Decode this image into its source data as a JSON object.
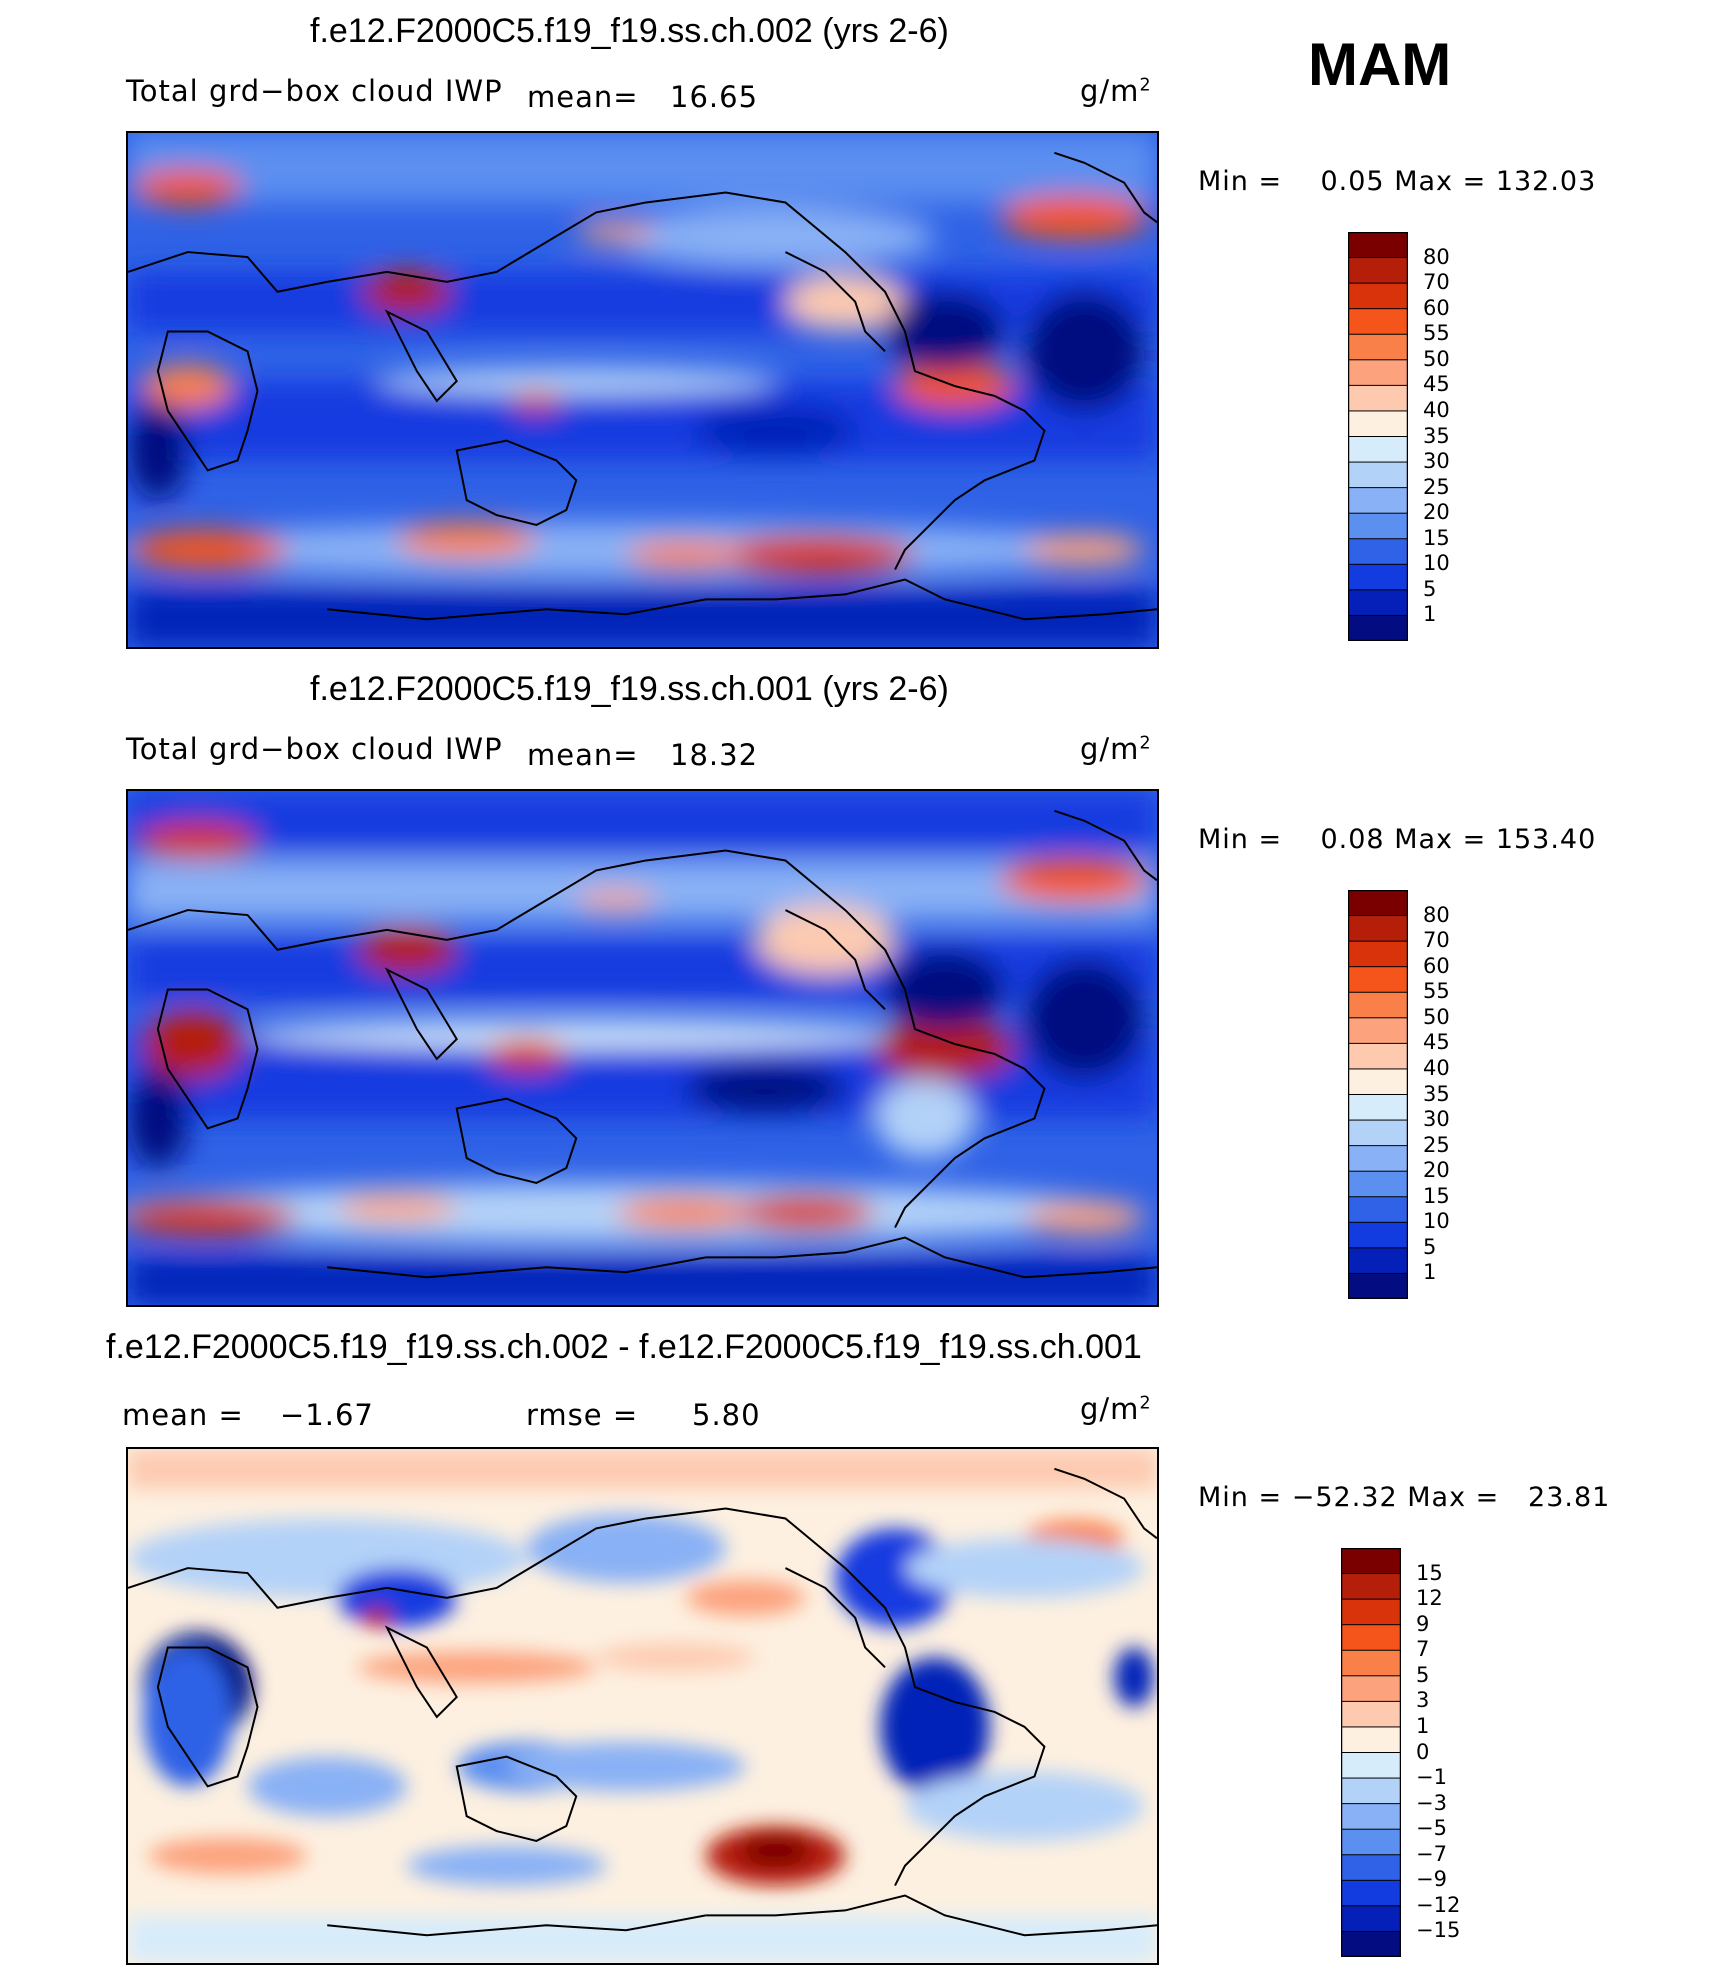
{
  "season": "MAM",
  "panels": [
    {
      "title": "f.e12.F2000C5.f19_f19.ss.ch.002 (yrs 2-6)",
      "variable": "Total grd−box cloud IWP",
      "mean_label": "mean=",
      "mean_value": "16.65",
      "units": "g/m",
      "units_exp": "2",
      "min_label": "Min =",
      "min_value": "0.05",
      "max_label": "Max =",
      "max_value": "132.03",
      "colorbar": {
        "labels": [
          "80",
          "70",
          "60",
          "55",
          "50",
          "45",
          "40",
          "35",
          "30",
          "25",
          "20",
          "15",
          "10",
          "5",
          "1"
        ],
        "colors": [
          "#7a0000",
          "#b51f0a",
          "#d8330b",
          "#f5541b",
          "#fa8049",
          "#fca27d",
          "#fdcab0",
          "#fdf0e0",
          "#d7ecfb",
          "#b3d2f8",
          "#89b1f5",
          "#5b8ff0",
          "#2f62e6",
          "#123be0",
          "#0420b8",
          "#030c80"
        ]
      }
    },
    {
      "title": "f.e12.F2000C5.f19_f19.ss.ch.001 (yrs 2-6)",
      "variable": "Total grd−box cloud IWP",
      "mean_label": "mean=",
      "mean_value": "18.32",
      "units": "g/m",
      "units_exp": "2",
      "min_label": "Min =",
      "min_value": "0.08",
      "max_label": "Max =",
      "max_value": "153.40",
      "colorbar": {
        "labels": [
          "80",
          "70",
          "60",
          "55",
          "50",
          "45",
          "40",
          "35",
          "30",
          "25",
          "20",
          "15",
          "10",
          "5",
          "1"
        ],
        "colors": [
          "#7a0000",
          "#b51f0a",
          "#d8330b",
          "#f5541b",
          "#fa8049",
          "#fca27d",
          "#fdcab0",
          "#fdf0e0",
          "#d7ecfb",
          "#b3d2f8",
          "#89b1f5",
          "#5b8ff0",
          "#2f62e6",
          "#123be0",
          "#0420b8",
          "#030c80"
        ]
      }
    },
    {
      "title": "f.e12.F2000C5.f19_f19.ss.ch.002 - f.e12.F2000C5.f19_f19.ss.ch.001",
      "mean_label": "mean =",
      "mean_value": "−1.67",
      "rmse_label": "rmse =",
      "rmse_value": "5.80",
      "units": "g/m",
      "units_exp": "2",
      "min_label": "Min =",
      "min_value": "−52.32",
      "max_label": "Max =",
      "max_value": "23.81",
      "colorbar": {
        "labels": [
          "15",
          "12",
          "9",
          "7",
          "5",
          "3",
          "1",
          "0",
          "−1",
          "−3",
          "−5",
          "−7",
          "−9",
          "−12",
          "−15"
        ],
        "colors": [
          "#7a0000",
          "#b51f0a",
          "#d8330b",
          "#f5541b",
          "#fa8049",
          "#fca27d",
          "#fdcab0",
          "#fdf0e0",
          "#d7ecfb",
          "#b3d2f8",
          "#89b1f5",
          "#5b8ff0",
          "#2f62e6",
          "#123be0",
          "#0420b8",
          "#030c80"
        ]
      }
    }
  ]
}
